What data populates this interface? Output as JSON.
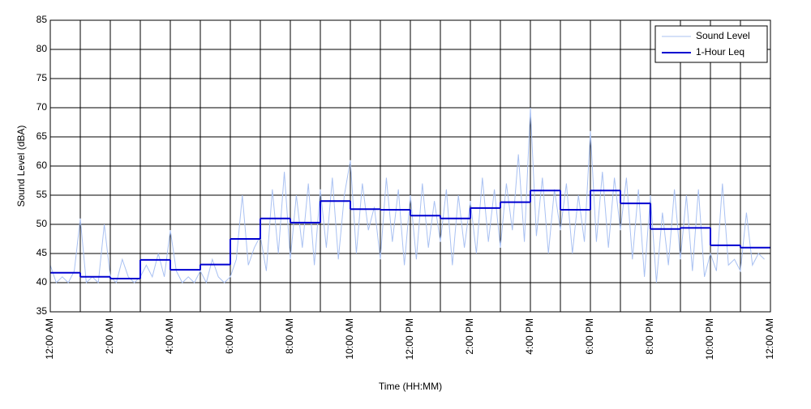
{
  "chart_data": {
    "type": "line",
    "xlabel": "Time (HH:MM)",
    "ylabel": "Sound Level (dBA)",
    "xlim": [
      0,
      24
    ],
    "xticks": [
      {
        "value": 0,
        "label": "12:00 AM"
      },
      {
        "value": 2,
        "label": "2:00 AM"
      },
      {
        "value": 4,
        "label": "4:00 AM"
      },
      {
        "value": 6,
        "label": "6:00 AM"
      },
      {
        "value": 8,
        "label": "8:00 AM"
      },
      {
        "value": 10,
        "label": "10:00 AM"
      },
      {
        "value": 12,
        "label": "12:00 PM"
      },
      {
        "value": 14,
        "label": "2:00 PM"
      },
      {
        "value": 16,
        "label": "4:00 PM"
      },
      {
        "value": 18,
        "label": "6:00 PM"
      },
      {
        "value": 20,
        "label": "8:00 PM"
      },
      {
        "value": 22,
        "label": "10:00 PM"
      },
      {
        "value": 24,
        "label": "12:00 AM"
      }
    ],
    "x_minor_ticks": [
      1,
      3,
      5,
      7,
      9,
      11,
      13,
      15,
      17,
      19,
      21,
      23
    ],
    "ylim": [
      35,
      85
    ],
    "yticks": [
      35,
      40,
      45,
      50,
      55,
      60,
      65,
      70,
      75,
      80,
      85
    ],
    "grid": true,
    "legend": "upper right",
    "series": [
      {
        "name": "Sound Level",
        "color": "#a9c1f2",
        "drawstyle": "default",
        "x": [
          0,
          0.2,
          0.4,
          0.6,
          0.8,
          1,
          1.2,
          1.4,
          1.6,
          1.8,
          2,
          2.2,
          2.4,
          2.6,
          2.8,
          3,
          3.2,
          3.4,
          3.6,
          3.8,
          4,
          4.2,
          4.4,
          4.6,
          4.8,
          5,
          5.2,
          5.4,
          5.6,
          5.8,
          6,
          6.2,
          6.4,
          6.6,
          6.8,
          7,
          7.2,
          7.4,
          7.6,
          7.8,
          8,
          8.2,
          8.4,
          8.6,
          8.8,
          9,
          9.2,
          9.4,
          9.6,
          9.8,
          10,
          10.2,
          10.4,
          10.6,
          10.8,
          11,
          11.2,
          11.4,
          11.6,
          11.8,
          12,
          12.2,
          12.4,
          12.6,
          12.8,
          13,
          13.2,
          13.4,
          13.6,
          13.8,
          14,
          14.2,
          14.4,
          14.6,
          14.8,
          15,
          15.2,
          15.4,
          15.6,
          15.8,
          16,
          16.2,
          16.4,
          16.6,
          16.8,
          17,
          17.2,
          17.4,
          17.6,
          17.8,
          18,
          18.2,
          18.4,
          18.6,
          18.8,
          19,
          19.2,
          19.4,
          19.6,
          19.8,
          20,
          20.2,
          20.4,
          20.6,
          20.8,
          21,
          21.2,
          21.4,
          21.6,
          21.8,
          22,
          22.2,
          22.4,
          22.6,
          22.8,
          23,
          23.2,
          23.4,
          23.6,
          23.8
        ],
        "values": [
          43,
          40,
          41,
          40,
          42,
          51,
          40,
          41,
          40,
          50,
          41,
          40,
          44,
          41,
          40,
          41,
          43,
          41,
          45,
          41,
          49,
          42,
          40,
          41,
          40,
          42,
          40,
          44,
          41,
          40,
          41,
          44,
          55,
          43,
          46,
          48,
          42,
          56,
          45,
          59,
          44,
          55,
          46,
          57,
          43,
          56,
          46,
          58,
          44,
          55,
          61,
          45,
          57,
          49,
          53,
          44,
          58,
          47,
          56,
          43,
          55,
          44,
          57,
          46,
          54,
          47,
          56,
          43,
          55,
          46,
          54,
          45,
          58,
          47,
          56,
          46,
          57,
          49,
          62,
          47,
          70,
          48,
          58,
          45,
          56,
          49,
          57,
          45,
          55,
          47,
          66,
          47,
          59,
          46,
          58,
          49,
          58,
          44,
          56,
          41,
          55,
          40,
          52,
          43,
          56,
          44,
          55,
          42,
          56,
          41,
          45,
          42,
          57,
          43,
          44,
          42,
          52,
          43,
          45,
          44
        ]
      },
      {
        "name": "1-Hour Leq",
        "color": "#0000d0",
        "drawstyle": "steps-post",
        "x": [
          0,
          1,
          2,
          3,
          4,
          5,
          6,
          7,
          8,
          9,
          10,
          11,
          12,
          13,
          14,
          15,
          16,
          17,
          18,
          19,
          20,
          21,
          22,
          23
        ],
        "values": [
          41.7,
          41.0,
          40.7,
          43.9,
          42.2,
          43.1,
          47.5,
          51.0,
          50.3,
          54.0,
          52.6,
          52.5,
          51.5,
          51.0,
          52.8,
          53.8,
          55.8,
          52.5,
          55.8,
          53.6,
          49.2,
          49.4,
          46.4,
          46.0
        ]
      }
    ]
  }
}
